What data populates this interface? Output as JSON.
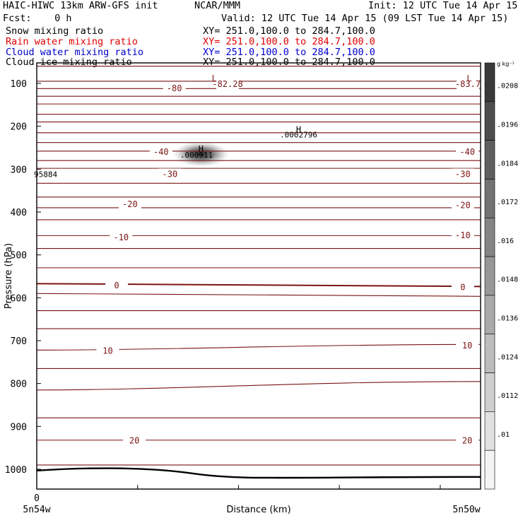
{
  "header": {
    "title": "HAIC-HIWC 13km ARW-GFS init",
    "center": "NCAR/MMM",
    "init": "Init: 12 UTC Tue 14 Apr 15",
    "fcst": "Fcst:    0 h",
    "valid": "Valid: 12 UTC Tue 14 Apr 15 (09 LST Tue 14 Apr 15)"
  },
  "legend": [
    {
      "name": "Snow mixing ratio",
      "xy": "XY= 251.0,100.0 to 284.7,100.0",
      "color": "#000000"
    },
    {
      "name": "Rain water mixing ratio",
      "xy": "XY= 251.0,100.0 to 284.7,100.0",
      "color": "#e00000"
    },
    {
      "name": "Cloud water mixing ratio",
      "xy": "XY= 251.0,100.0 to 284.7,100.0",
      "color": "#0000cc"
    },
    {
      "name": "Cloud ice mixing ratio",
      "xy": "XY= 251.0,100.0 to 284.7,100.0",
      "color": "#000000"
    }
  ],
  "chart_data": {
    "type": "contour cross-section",
    "xlabel": "Distance (km)",
    "ylabel": "Pressure (hPa)",
    "ylim": [
      1050,
      50
    ],
    "y_ticks": [
      "100",
      "200",
      "300",
      "400",
      "500",
      "600",
      "700",
      "800",
      "900",
      "1000"
    ],
    "x_tick_label": "0",
    "left_location": "5n54w",
    "right_location": "5n50w",
    "colorbar": {
      "unit": "g kg⁻¹",
      "labels": [
        ".0208",
        ".0196",
        ".0184",
        ".0172",
        ".016",
        ".0148",
        ".0136",
        ".0124",
        ".0112",
        ".01"
      ]
    },
    "contour_labels": [
      {
        "text": "-80",
        "p": 110,
        "xf": 0.31
      },
      {
        "text": "-82.28",
        "p": 100,
        "xf": 0.43
      },
      {
        "text": "-83.7",
        "p": 100,
        "xf": 0.98
      },
      {
        "text": "-40",
        "p": 258,
        "xf": 0.28
      },
      {
        "text": "-40",
        "p": 258,
        "xf": 0.97
      },
      {
        "text": "-30",
        "p": 310,
        "xf": 0.3
      },
      {
        "text": "-30",
        "p": 310,
        "xf": 0.96
      },
      {
        "text": "-20",
        "p": 380,
        "xf": 0.21
      },
      {
        "text": "-20",
        "p": 383,
        "xf": 0.96
      },
      {
        "text": "-10",
        "p": 458,
        "xf": 0.19
      },
      {
        "text": "-10",
        "p": 453,
        "xf": 0.96
      },
      {
        "text": "0",
        "p": 570,
        "xf": 0.18
      },
      {
        "text": "0",
        "p": 574,
        "xf": 0.96
      },
      {
        "text": "10",
        "p": 722,
        "xf": 0.16
      },
      {
        "text": "10",
        "p": 710,
        "xf": 0.97
      },
      {
        "text": "20",
        "p": 932,
        "xf": 0.22
      },
      {
        "text": "20",
        "p": 932,
        "xf": 0.97
      }
    ],
    "extrema_marks": [
      {
        "symbol": "L",
        "p": 85,
        "xf": 0.4,
        "color": "#8b1a1a"
      },
      {
        "symbol": "L",
        "p": 85,
        "xf": 0.98,
        "color": "#8b1a1a"
      },
      {
        "symbol": "H",
        "p": 205,
        "xf": 0.59,
        "color": "#000000"
      },
      {
        "symbol": "H",
        "p": 250,
        "xf": 0.37,
        "color": "#000000"
      }
    ],
    "extrema_values": [
      {
        "text": ".0002796",
        "p": 218,
        "xf": 0.59
      },
      {
        "text": ".000911",
        "p": 265,
        "xf": 0.36
      },
      {
        "text": "95884",
        "p": 310,
        "xf": 0.0
      }
    ],
    "isotherm_pressures": [
      60,
      95,
      112,
      130,
      148,
      172,
      190,
      215,
      238,
      258,
      280,
      298,
      333,
      365,
      390,
      418,
      455,
      485,
      530,
      567,
      590,
      630,
      672,
      722,
      765,
      815,
      880,
      932,
      990
    ],
    "ice_blob": {
      "p": 265,
      "xf": 0.37,
      "value": 0.000911
    }
  }
}
